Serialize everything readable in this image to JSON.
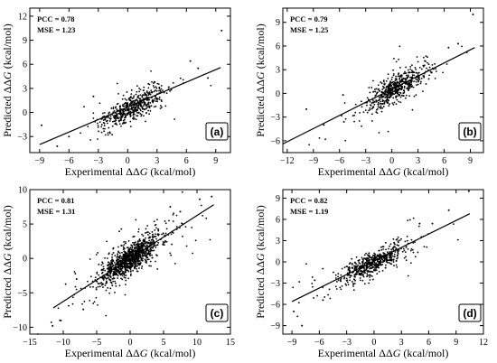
{
  "colors": {
    "points": "#000000",
    "fit_line": "#000000",
    "background": "#ffffff"
  },
  "chart_data": [
    {
      "type": "scatter",
      "panel_label": "(a)",
      "xlabel": "Experimental ΔΔG (kcal/mol)",
      "ylabel": "Predicted ΔΔG (kcal/mol)",
      "xlim": [
        -10,
        10.5
      ],
      "ylim": [
        -5,
        13
      ],
      "xticks": [
        -9,
        -6,
        -3,
        0,
        3,
        6,
        9
      ],
      "yticks": [
        -3,
        0,
        3,
        6,
        9,
        12
      ],
      "pcc_label": "PCC = 0.78",
      "mse_label": "MSE = 1.23",
      "fit_line": [
        [
          -9,
          -4.0
        ],
        [
          9.5,
          5.6
        ]
      ],
      "cloud": {
        "n": 520,
        "center": [
          0.4,
          0.6
        ],
        "sx": 1.5,
        "sy": 1.2,
        "rho": 0.78,
        "seed": 11
      },
      "outliers": [
        [
          9.6,
          10.2
        ],
        [
          -8.8,
          -1.6
        ],
        [
          -7.2,
          -4.2
        ],
        [
          6.4,
          6.4
        ],
        [
          7.2,
          5.5
        ],
        [
          -3.5,
          2.0
        ],
        [
          8.2,
          4.3
        ],
        [
          -6.0,
          -3.0
        ]
      ]
    },
    {
      "type": "scatter",
      "panel_label": "(b)",
      "xlabel": "Experimental ΔΔG (kcal/mol)",
      "ylabel": "Predicted ΔΔG (kcal/mol)",
      "xlim": [
        -12.5,
        10.5
      ],
      "ylim": [
        -7.5,
        10.8
      ],
      "xticks": [
        -12,
        -9,
        -6,
        -3,
        0,
        3,
        6,
        9
      ],
      "yticks": [
        -6,
        -3,
        0,
        3,
        6,
        9
      ],
      "pcc_label": "PCC = 0.79",
      "mse_label": "MSE = 1.25",
      "fit_line": [
        [
          -12.5,
          -6.4
        ],
        [
          9.5,
          5.8
        ]
      ],
      "cloud": {
        "n": 560,
        "center": [
          0.4,
          0.6
        ],
        "sx": 1.6,
        "sy": 1.2,
        "rho": 0.79,
        "seed": 23
      },
      "outliers": [
        [
          9.3,
          10.0
        ],
        [
          -9.8,
          -2.0
        ],
        [
          -5.5,
          -3.6
        ],
        [
          6.5,
          5.8
        ],
        [
          -5.6,
          -0.2
        ],
        [
          7.6,
          6.3
        ],
        [
          -7.8,
          -4.0
        ],
        [
          8.6,
          5.2
        ]
      ]
    },
    {
      "type": "scatter",
      "panel_label": "(c)",
      "xlabel": "Experimental ΔΔG (kcal/mol)",
      "ylabel": "Predicted ΔΔG (kcal/mol)",
      "xlim": [
        -15,
        15
      ],
      "ylim": [
        -11,
        10
      ],
      "xticks": [
        -15,
        -10,
        -5,
        0,
        5,
        10,
        15
      ],
      "yticks": [
        -10,
        -5,
        0,
        5,
        10
      ],
      "pcc_label": "PCC = 0.81",
      "mse_label": "MSE = 1.31",
      "fit_line": [
        [
          -11.5,
          -7.2
        ],
        [
          12.5,
          7.8
        ]
      ],
      "cloud": {
        "n": 1100,
        "center": [
          0.0,
          0.0
        ],
        "sx": 2.3,
        "sy": 1.8,
        "rho": 0.81,
        "seed": 37
      },
      "outliers": [
        [
          12.2,
          9.0
        ],
        [
          10.4,
          8.6
        ],
        [
          -11.6,
          -9.8
        ],
        [
          -10.5,
          -9.0
        ],
        [
          -8.0,
          -3.0
        ],
        [
          7.5,
          6.8
        ],
        [
          6.0,
          7.5
        ],
        [
          -7.0,
          -7.4
        ]
      ]
    },
    {
      "type": "scatter",
      "panel_label": "(d)",
      "xlabel": "Experimental ΔΔG (kcal/mol)",
      "ylabel": "Predicted ΔΔG (kcal/mol)",
      "xlim": [
        -10,
        12
      ],
      "ylim": [
        -10.2,
        10.2
      ],
      "xticks": [
        -9,
        -6,
        -3,
        0,
        3,
        6,
        9,
        12
      ],
      "yticks": [
        -9,
        -6,
        -3,
        0,
        3,
        6,
        9
      ],
      "pcc_label": "PCC = 0.82",
      "mse_label": "MSE = 1.19",
      "fit_line": [
        [
          -9,
          -5.6
        ],
        [
          10.5,
          6.8
        ]
      ],
      "cloud": {
        "n": 600,
        "center": [
          -0.3,
          -0.3
        ],
        "sx": 1.8,
        "sy": 1.3,
        "rho": 0.82,
        "seed": 53
      },
      "outliers": [
        [
          10.4,
          10.0
        ],
        [
          -8.8,
          -7.0
        ],
        [
          -7.9,
          -9.0
        ],
        [
          8.2,
          7.3
        ],
        [
          6.4,
          5.4
        ],
        [
          -5.6,
          -5.4
        ],
        [
          5.0,
          5.4
        ],
        [
          -6.5,
          -2.6
        ]
      ]
    }
  ]
}
